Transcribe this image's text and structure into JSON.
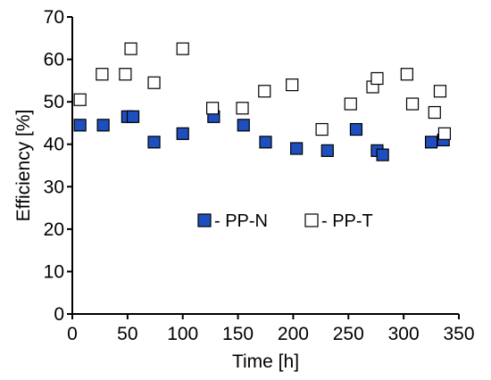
{
  "chart_data": {
    "type": "scatter",
    "xlabel": "Time [h]",
    "ylabel": "Efficiency [%]",
    "xlim": [
      0,
      350
    ],
    "ylim": [
      0,
      70
    ],
    "xticks": [
      0,
      50,
      100,
      150,
      200,
      250,
      300,
      350
    ],
    "yticks": [
      0,
      10,
      20,
      30,
      40,
      50,
      60,
      70
    ],
    "grid": false,
    "legend_position": "center",
    "series": [
      {
        "name": "- PP-N",
        "marker": "filled-square",
        "color": "#1f4fbf",
        "x": [
          7,
          28,
          50,
          55,
          74,
          100,
          128,
          155,
          175,
          203,
          231,
          257,
          276,
          281,
          325,
          336
        ],
        "y": [
          44.5,
          44.5,
          46.5,
          46.5,
          40.5,
          42.5,
          46.5,
          44.5,
          40.5,
          39,
          38.5,
          43.5,
          38.5,
          37.5,
          40.5,
          41
        ]
      },
      {
        "name": "- PP-T",
        "marker": "open-square",
        "color": "#ffffff",
        "x": [
          7,
          27,
          48,
          53,
          74,
          100,
          127,
          154,
          174,
          199,
          226,
          252,
          272,
          276,
          303,
          308,
          328,
          333,
          337
        ],
        "y": [
          50.5,
          56.5,
          56.5,
          62.5,
          54.5,
          62.5,
          48.5,
          48.5,
          52.5,
          54,
          43.5,
          49.5,
          53.5,
          55.5,
          56.5,
          49.5,
          47.5,
          52.5,
          42.5
        ]
      }
    ]
  }
}
